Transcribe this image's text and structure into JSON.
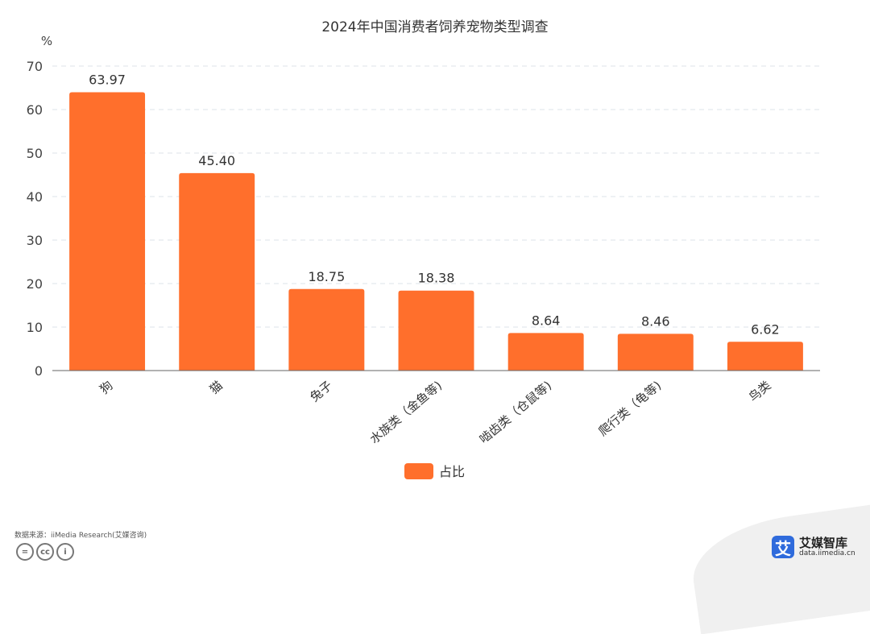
{
  "chart_data": {
    "type": "bar",
    "title": "2024年中国消费者饲养宠物类型调查",
    "ylabel": "%",
    "categories": [
      "狗",
      "猫",
      "兔子",
      "水族类（金鱼等)",
      "啮齿类（仓鼠等)",
      "爬行类（龟等)",
      "鸟类"
    ],
    "series": [
      {
        "name": "占比",
        "values": [
          63.97,
          45.4,
          18.75,
          18.38,
          8.64,
          8.46,
          6.62
        ],
        "labels": [
          "63.97",
          "45.40",
          "18.75",
          "18.38",
          "8.64",
          "8.46",
          "6.62"
        ]
      }
    ],
    "ylim": [
      0,
      70
    ],
    "yticks": [
      0,
      10,
      20,
      30,
      40,
      50,
      60,
      70
    ],
    "grid": true,
    "legend": "bottom-center",
    "colors": {
      "bar": "#ff6f2c",
      "grid": "#dde3ea",
      "axis": "#666666"
    }
  },
  "footer": {
    "source": "数据来源：iiMedia Research(艾媒咨询)",
    "cc_icons": [
      "equals-icon",
      "cc-icon",
      "person-icon"
    ],
    "cc_text": [
      "=",
      "cc",
      "i"
    ]
  },
  "brand": {
    "logo_char": "艾",
    "name": "艾媒智库",
    "url": "data.iimedia.cn",
    "color": "#2f6bdc"
  }
}
